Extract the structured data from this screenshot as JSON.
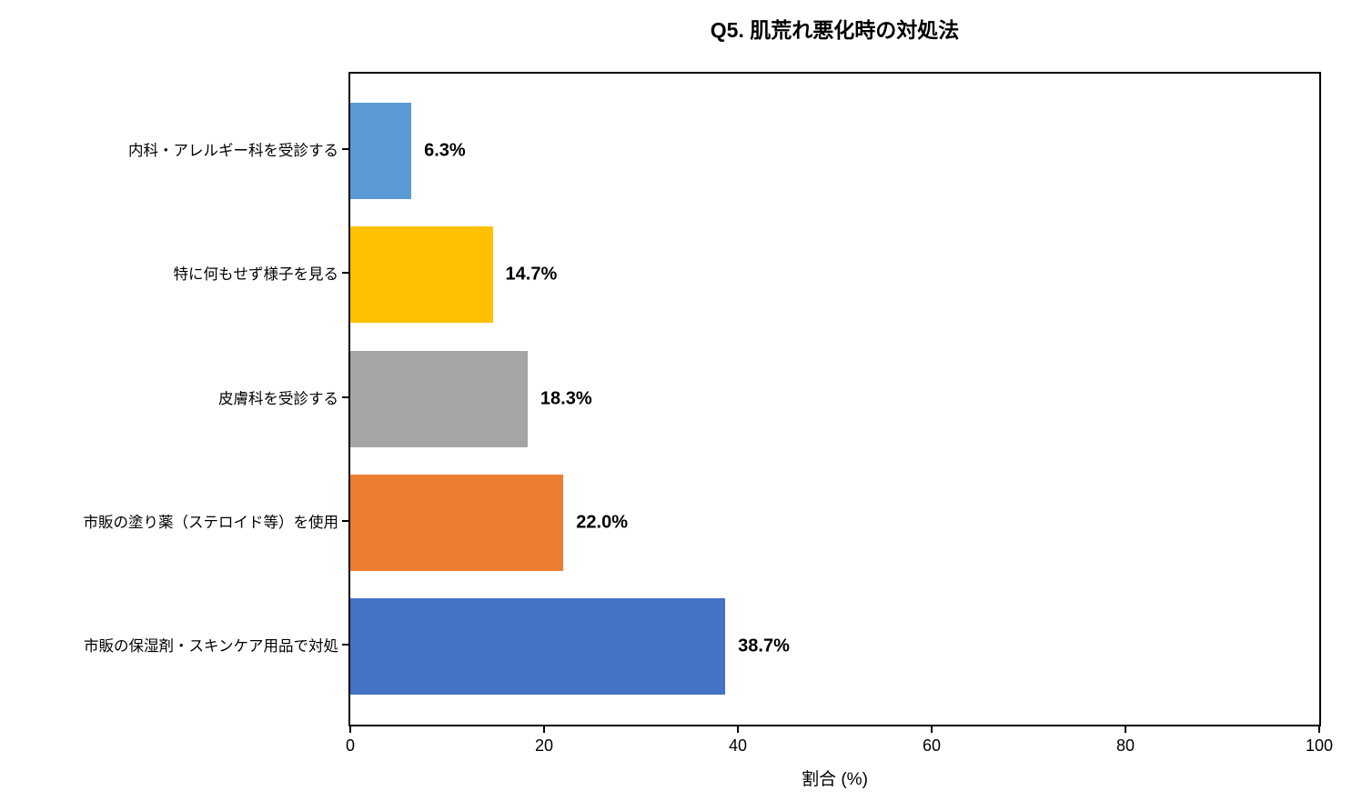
{
  "chart_data": {
    "type": "bar",
    "orientation": "horizontal",
    "title": "Q5. 肌荒れ悪化時の対処法",
    "xlabel": "割合 (%)",
    "ylabel": "",
    "xlim": [
      0,
      100
    ],
    "x_ticks": [
      0,
      20,
      40,
      60,
      80,
      100
    ],
    "grid": false,
    "legend": false,
    "categories": [
      "内科・アレルギー科を受診する",
      "特に何もせず様子を見る",
      "皮膚科を受診する",
      "市販の塗り薬（ステロイド等）を使用",
      "市販の保湿剤・スキンケア用品で対処"
    ],
    "values": [
      6.3,
      14.7,
      18.3,
      22.0,
      38.7
    ],
    "value_labels": [
      "6.3%",
      "14.7%",
      "18.3%",
      "22.0%",
      "38.7%"
    ],
    "bar_colors": [
      "#5B9BD5",
      "#FFC000",
      "#A5A5A5",
      "#ED7D31",
      "#4472C4"
    ],
    "axis_color": "#000000",
    "background_color": "#FFFFFF"
  }
}
